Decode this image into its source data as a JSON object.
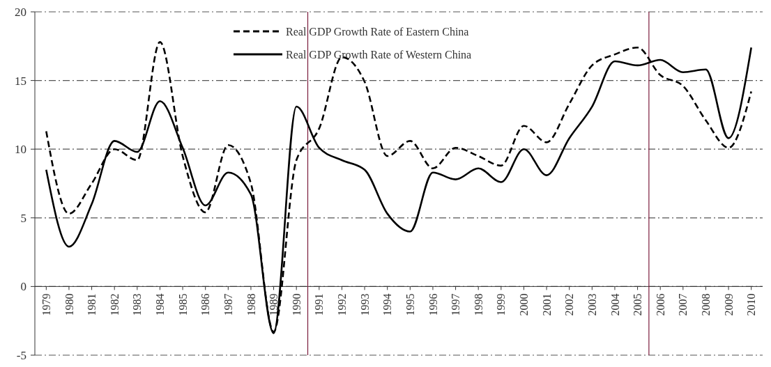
{
  "chart_data": {
    "type": "line",
    "x": [
      1979,
      1980,
      1981,
      1982,
      1983,
      1984,
      1985,
      1986,
      1987,
      1988,
      1989,
      1990,
      1991,
      1992,
      1993,
      1994,
      1995,
      1996,
      1997,
      1998,
      1999,
      2000,
      2001,
      2002,
      2003,
      2004,
      2005,
      2006,
      2007,
      2008,
      2009,
      2010
    ],
    "series": [
      {
        "name": "Real GDP Growth Rate of Eastern China",
        "color": "#000000",
        "line_style": "dashed",
        "values": [
          11.3,
          5.3,
          7.5,
          10.0,
          9.2,
          17.8,
          9.5,
          5.4,
          10.3,
          7.5,
          -3.3,
          9.2,
          11.5,
          16.7,
          14.9,
          9.5,
          10.6,
          8.6,
          10.1,
          9.5,
          8.8,
          11.7,
          10.5,
          13.3,
          16.1,
          16.9,
          17.4,
          15.4,
          14.6,
          12.1,
          10.1,
          14.2
        ]
      },
      {
        "name": "Real GDP Growth Rate of Western China",
        "color": "#000000",
        "line_style": "solid",
        "values": [
          8.5,
          2.9,
          6.0,
          10.6,
          9.8,
          13.5,
          10.1,
          5.9,
          8.3,
          6.7,
          -3.4,
          13.1,
          10.1,
          9.2,
          8.5,
          5.3,
          4.0,
          8.3,
          7.8,
          8.6,
          7.6,
          10.0,
          8.1,
          10.8,
          13.1,
          16.4,
          16.1,
          16.5,
          15.6,
          15.8,
          10.8,
          17.4
        ]
      }
    ],
    "xlim": [
      1978.5,
      2010.5
    ],
    "xticks": [
      1979,
      1980,
      1981,
      1982,
      1983,
      1984,
      1985,
      1986,
      1987,
      1988,
      1989,
      1990,
      1991,
      1992,
      1993,
      1994,
      1995,
      1996,
      1997,
      1998,
      1999,
      2000,
      2001,
      2002,
      2003,
      2004,
      2005,
      2006,
      2007,
      2008,
      2009,
      2010
    ],
    "ylim": [
      -5,
      20
    ],
    "yticks": [
      -5,
      0,
      5,
      10,
      15,
      20
    ],
    "grid": "y",
    "legend": "top",
    "ref_lines": [
      {
        "axis": "x",
        "value": 1990.5,
        "color": "#7b1c3c"
      },
      {
        "axis": "x",
        "value": 2005.5,
        "color": "#7b1c3c"
      }
    ]
  }
}
